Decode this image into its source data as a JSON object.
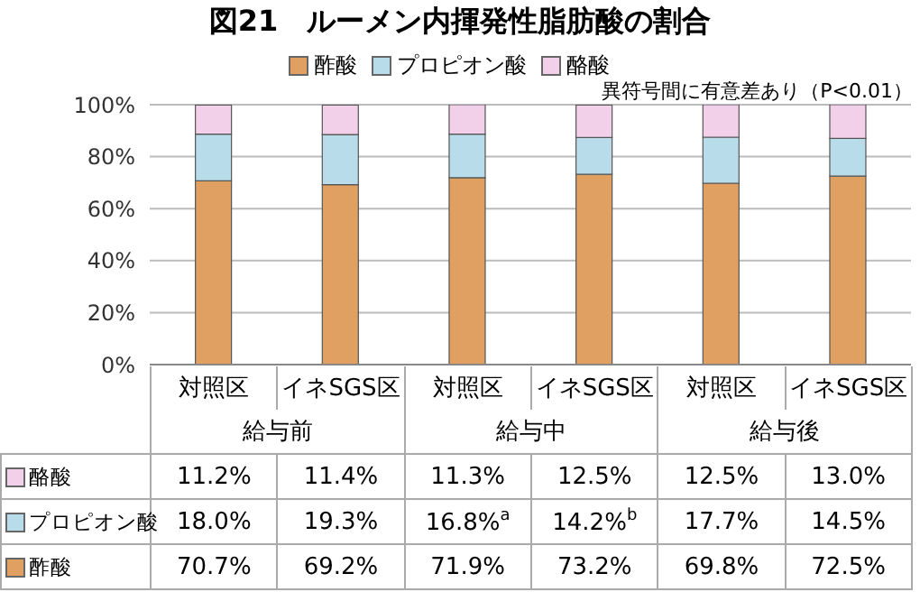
{
  "chart_data": {
    "type": "bar",
    "title": "図21　ルーメン内揮発性脂肪酸の割合",
    "categories": [
      "対照区",
      "イネSGS区",
      "対照区",
      "イネSGS区",
      "対照区",
      "イネSGS区"
    ],
    "series": [
      {
        "name": "酢酸",
        "color": "#e0a062",
        "values": [
          70.7,
          69.2,
          71.9,
          73.2,
          69.8,
          72.5
        ],
        "value_labels": [
          "70.7%",
          "69.2%",
          "71.9%",
          "73.2%",
          "69.8%",
          "72.5%"
        ]
      },
      {
        "name": "プロピオン酸",
        "color": "#b9dcea",
        "values": [
          18.0,
          19.3,
          16.8,
          14.2,
          17.7,
          14.5
        ],
        "value_labels": [
          "18.0%",
          "19.3%",
          "16.8%",
          "14.2%",
          "17.7%",
          "14.5%"
        ]
      },
      {
        "name": "酪酸",
        "color": "#f3d0ea",
        "values": [
          11.2,
          11.4,
          11.3,
          12.5,
          12.5,
          13.0
        ],
        "value_labels": [
          "11.2%",
          "11.4%",
          "11.3%",
          "12.5%",
          "12.5%",
          "13.0%"
        ]
      }
    ],
    "stacked": true,
    "ylim": [
      0,
      100
    ],
    "yticks": [
      {
        "value": 0,
        "label": "0%"
      },
      {
        "value": 20,
        "label": "20%"
      },
      {
        "value": 40,
        "label": "40%"
      },
      {
        "value": 60,
        "label": "60%"
      },
      {
        "value": 80,
        "label": "80%"
      },
      {
        "value": 100,
        "label": "100%"
      }
    ],
    "grid": "y",
    "legend": "top",
    "annotations": [
      "異符号間に有意差あり（P<0.01）",
      "給与前",
      "給与中",
      "給与後",
      "a",
      "b"
    ]
  }
}
